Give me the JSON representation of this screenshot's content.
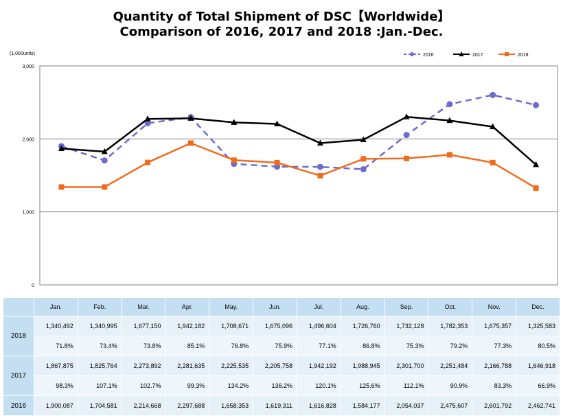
{
  "title_line1": "Quantity of Total Shipment of DSC【Worldwide】",
  "title_line2": "Comparison of 2016, 2017 and 2018 :Jan.-Dec.",
  "colors": {
    "s2016": "#6b6bd0",
    "s2017": "#000000",
    "s2018": "#f26b1d",
    "header_bg": "#c5dff2",
    "cell_bg": "#e6f0f9"
  },
  "chart_data": {
    "type": "line",
    "unit_label": "(1,000units)",
    "categories": [
      "Jan.",
      "Feb.",
      "Mar.",
      "Apr.",
      "May.",
      "Jun.",
      "Jul.",
      "Aug.",
      "Sep.",
      "Oct.",
      "Nov.",
      "Dec."
    ],
    "ylim": [
      0,
      3000
    ],
    "yticks": [
      0,
      1000,
      2000,
      3000
    ],
    "ytick_labels": [
      "0",
      "1,000",
      "2,000",
      "3,000"
    ],
    "grid": true,
    "legend_position": "top-right",
    "series": [
      {
        "name": "2016",
        "style": "dashed",
        "marker": "circle",
        "color": "#6b6bd0",
        "values": [
          1900.087,
          1704.581,
          2214.668,
          2297.688,
          1658.353,
          1619.311,
          1616.828,
          1584.177,
          2054.037,
          2475.607,
          2601.792,
          2462.741
        ]
      },
      {
        "name": "2017",
        "style": "solid",
        "marker": "triangle",
        "color": "#000000",
        "values": [
          1867.875,
          1825.764,
          2273.892,
          2281.635,
          2225.535,
          2205.758,
          1942.192,
          1988.945,
          2301.7,
          2251.484,
          2166.788,
          1646.918
        ]
      },
      {
        "name": "2018",
        "style": "solid",
        "marker": "square",
        "color": "#f26b1d",
        "values": [
          1340.492,
          1340.995,
          1677.15,
          1942.182,
          1708.671,
          1675.096,
          1496.604,
          1726.76,
          1732.128,
          1782.353,
          1675.357,
          1325.583
        ]
      }
    ]
  },
  "table": {
    "months": [
      "Jan.",
      "Feb.",
      "Mar.",
      "Apr.",
      "May.",
      "Jun.",
      "Jul.",
      "Aug.",
      "Sep.",
      "Oct.",
      "Nov.",
      "Dec."
    ],
    "rows": [
      {
        "year": "2018",
        "values": [
          "1,340,492",
          "1,340,995",
          "1,677,150",
          "1,942,182",
          "1,708,671",
          "1,675,096",
          "1,496,604",
          "1,726,760",
          "1,732,128",
          "1,782,353",
          "1,675,357",
          "1,325,583"
        ],
        "pct": [
          "71.8%",
          "73.4%",
          "73.8%",
          "85.1%",
          "76.8%",
          "75.9%",
          "77.1%",
          "86.8%",
          "75.3%",
          "79.2%",
          "77.3%",
          "80.5%"
        ]
      },
      {
        "year": "2017",
        "values": [
          "1,867,875",
          "1,825,764",
          "2,273,892",
          "2,281,635",
          "2,225,535",
          "2,205,758",
          "1,942,192",
          "1,988,945",
          "2,301,700",
          "2,251,484",
          "2,166,788",
          "1,646,918"
        ],
        "pct": [
          "98.3%",
          "107.1%",
          "102.7%",
          "99.3%",
          "134.2%",
          "136.2%",
          "120.1%",
          "125.6%",
          "112.1%",
          "90.9%",
          "83.3%",
          "66.9%"
        ]
      },
      {
        "year": "2016",
        "values": [
          "1,900,087",
          "1,704,581",
          "2,214,668",
          "2,297,688",
          "1,658,353",
          "1,619,311",
          "1,616,828",
          "1,584,177",
          "2,054,037",
          "2,475,607",
          "2,601,792",
          "2,462,741"
        ]
      }
    ]
  }
}
